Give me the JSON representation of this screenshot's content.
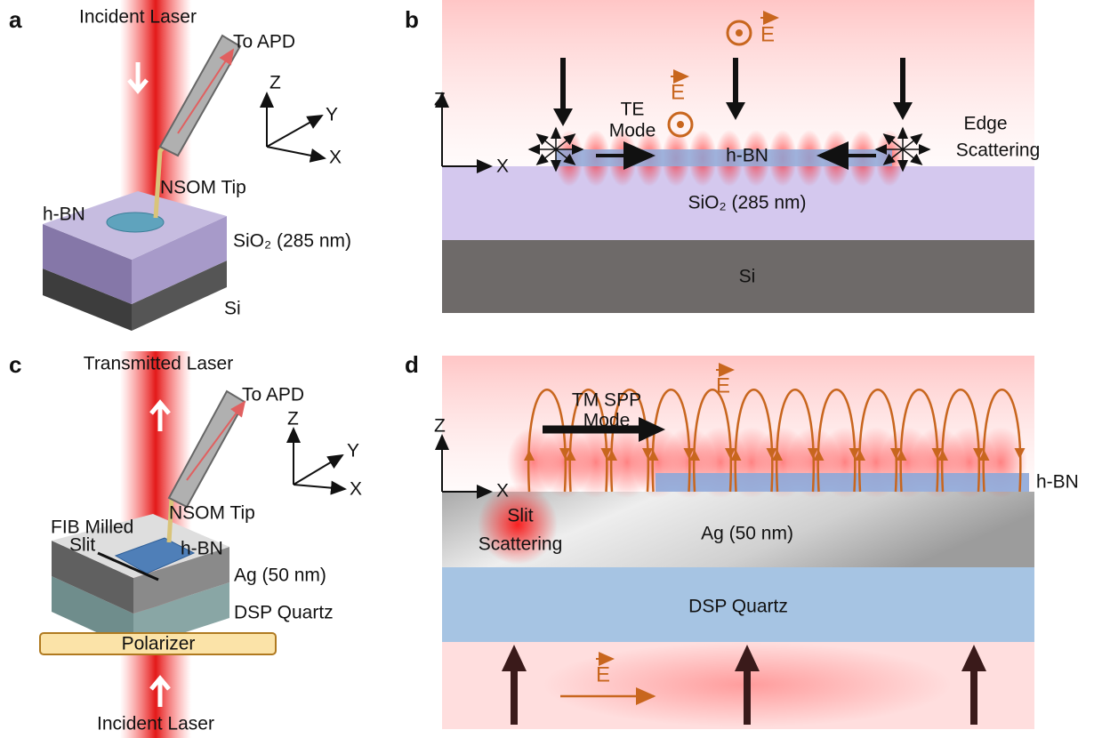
{
  "panel_a": {
    "label": "a",
    "incident_laser": "Incident Laser",
    "to_apd": "To APD",
    "axis_z": "Z",
    "axis_y": "Y",
    "axis_x": "X",
    "nsom_tip": "NSOM Tip",
    "hbn": "h-BN",
    "sio2": "SiO₂ (285 nm)",
    "si": "Si"
  },
  "panel_b": {
    "label": "b",
    "e_field_top": "E",
    "axis_z": "Z",
    "axis_x": "X",
    "e_field_te": "E",
    "te_mode": [
      "TE",
      "Mode"
    ],
    "hbn": "h-BN",
    "edge_scattering": [
      "Edge",
      "Scattering"
    ],
    "sio2": "SiO₂ (285 nm)",
    "si": "Si"
  },
  "panel_c": {
    "label": "c",
    "transmitted_laser": "Transmitted Laser",
    "to_apd": "To APD",
    "axis_z": "Z",
    "axis_y": "Y",
    "axis_x": "X",
    "nsom_tip": "NSOM Tip",
    "fib_milled_slit": [
      "FIB Milled",
      "Slit"
    ],
    "hbn": "h-BN",
    "ag": "Ag (50 nm)",
    "quartz": "DSP Quartz",
    "polarizer": "Polarizer",
    "incident_laser": "Incident Laser"
  },
  "panel_d": {
    "label": "d",
    "tm_spp_mode": [
      "TM SPP",
      "Mode"
    ],
    "e_field_top": "E",
    "axis_z": "Z",
    "axis_x": "X",
    "hbn": "h-BN",
    "slit_scattering": [
      "Slit",
      "Scattering"
    ],
    "ag": "Ag (50 nm)",
    "quartz": "DSP Quartz",
    "e_field_bottom": "E"
  }
}
